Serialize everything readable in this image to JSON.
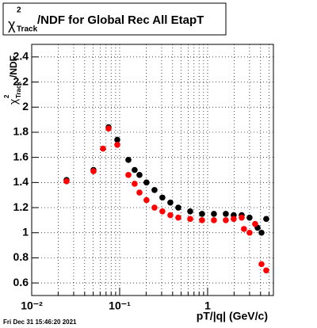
{
  "chart_data": {
    "type": "scatter",
    "title": {
      "symbol": "χ",
      "sup": "2",
      "sub": "Track",
      "text": "/NDF for Global Rec All EtapT"
    },
    "ylabel": {
      "symbol": "χ",
      "sup": "2",
      "sub": "Track",
      "text": "/NDF"
    },
    "xlabel": "pT/|q| (GeV/c)",
    "footer": "Fri Dec 31 15:46:20 2021",
    "log_x": true,
    "grid": true,
    "xlim": [
      0.01,
      5.6
    ],
    "ylim": [
      0.5,
      2.5
    ],
    "xticks": [
      {
        "value": 0.01,
        "label": "10⁻²"
      },
      {
        "value": 0.1,
        "label": "10⁻¹"
      },
      1
    ],
    "xminorticks": [
      0.02,
      0.03,
      0.04,
      0.05,
      0.06,
      0.07,
      0.08,
      0.09,
      0.2,
      0.3,
      0.4,
      0.5,
      0.6,
      0.7,
      0.8,
      0.9,
      2,
      3,
      4,
      5
    ],
    "yticks": [
      0.6,
      0.8,
      1,
      1.2,
      1.4,
      1.6,
      1.8,
      2,
      2.2,
      2.4
    ],
    "series": [
      {
        "color": "#000000",
        "x": [
          0.0249,
          0.0504,
          0.0748,
          0.094,
          0.1257,
          0.148,
          0.168,
          0.202,
          0.249,
          0.306,
          0.377,
          0.464,
          0.634,
          0.865,
          1.18,
          1.61,
          1.98,
          2.44,
          3.0,
          3.7,
          4.1,
          4.64
        ],
        "values": [
          1.42,
          1.5,
          1.84,
          1.74,
          1.58,
          1.5,
          1.46,
          1.4,
          1.34,
          1.28,
          1.24,
          1.2,
          1.17,
          1.15,
          1.15,
          1.15,
          1.14,
          1.14,
          1.12,
          1.04,
          1.0,
          1.11
        ]
      },
      {
        "color": "#ff0000",
        "x": [
          0.0249,
          0.0504,
          0.0647,
          0.0748,
          0.094,
          0.1257,
          0.148,
          0.168,
          0.202,
          0.249,
          0.306,
          0.377,
          0.464,
          0.634,
          0.865,
          1.18,
          1.61,
          1.98,
          2.44,
          2.59,
          3.0,
          3.47,
          4.1,
          4.64
        ],
        "values": [
          1.41,
          1.49,
          1.67,
          1.83,
          1.7,
          1.46,
          1.39,
          1.32,
          1.26,
          1.2,
          1.17,
          1.14,
          1.12,
          1.11,
          1.1,
          1.1,
          1.1,
          1.11,
          1.12,
          1.03,
          1.0,
          1.07,
          0.75,
          0.7
        ]
      }
    ]
  }
}
